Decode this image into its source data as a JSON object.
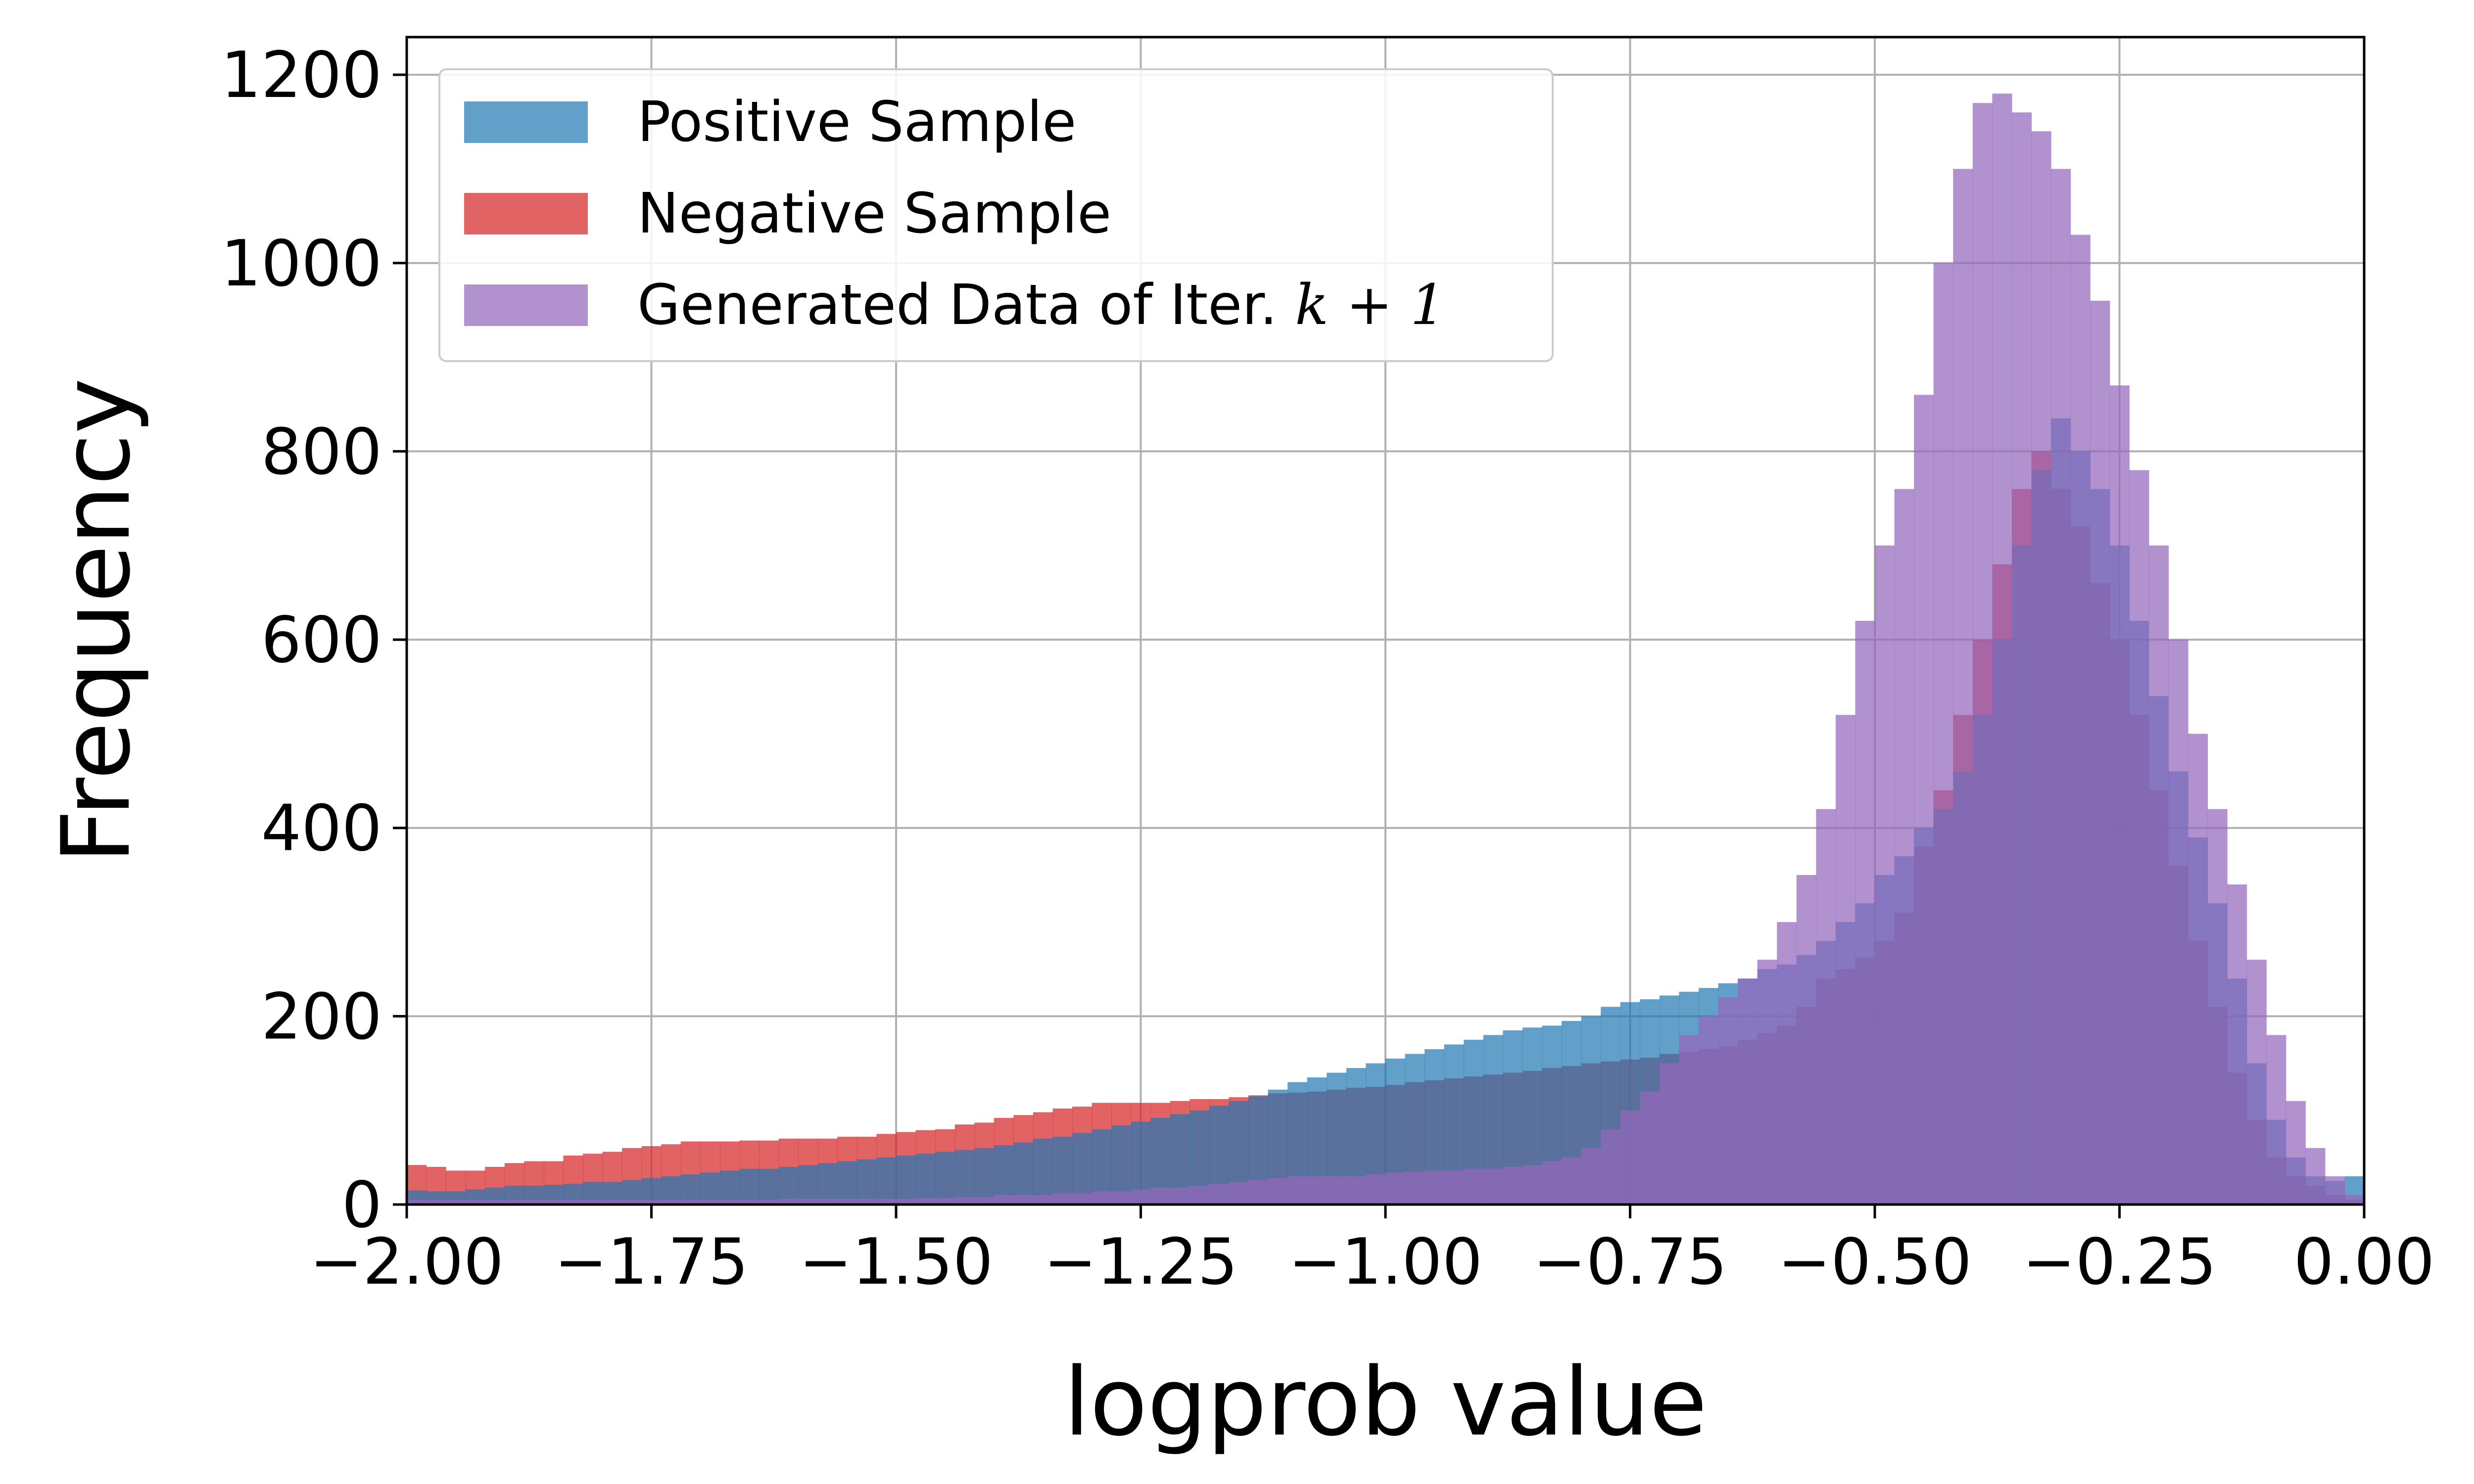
{
  "chart_data": {
    "type": "histogram",
    "title": "",
    "xlabel": "logprob value",
    "ylabel": "Frequency",
    "xlim": [
      -2.0,
      0.0
    ],
    "ylim": [
      0,
      1240
    ],
    "bin_width": 0.02,
    "grid": true,
    "legend_position": "top-left",
    "x_ticks": [
      -2.0,
      -1.75,
      -1.5,
      -1.25,
      -1.0,
      -0.75,
      -0.5,
      -0.25,
      0.0
    ],
    "x_tick_labels": [
      "−2.00",
      "−1.75",
      "−1.50",
      "−1.25",
      "−1.00",
      "−0.75",
      "−0.50",
      "−0.25",
      "0.00"
    ],
    "y_ticks": [
      0,
      200,
      400,
      600,
      800,
      1000,
      1200
    ],
    "y_tick_labels": [
      "0",
      "200",
      "400",
      "600",
      "800",
      "1000",
      "1200"
    ],
    "series": [
      {
        "name": "Negative Sample",
        "legend_label": "Negative Sample",
        "color": "#d62728",
        "opacity": 0.72,
        "values": [
          42,
          40,
          36,
          36,
          40,
          44,
          46,
          46,
          52,
          54,
          56,
          60,
          62,
          64,
          67,
          67,
          67,
          68,
          68,
          70,
          70,
          70,
          72,
          72,
          75,
          77,
          79,
          80,
          85,
          87,
          92,
          95,
          98,
          102,
          104,
          108,
          108,
          108,
          108,
          110,
          112,
          112,
          114,
          116,
          118,
          119,
          120,
          122,
          124,
          125,
          127,
          130,
          132,
          134,
          136,
          138,
          140,
          142,
          145,
          147,
          150,
          152,
          154,
          156,
          160,
          162,
          165,
          168,
          175,
          182,
          190,
          210,
          240,
          250,
          262,
          280,
          310,
          380,
          440,
          520,
          600,
          680,
          760,
          800,
          760,
          720,
          660,
          600,
          520,
          440,
          360,
          280,
          210,
          140,
          90,
          50,
          30,
          20,
          10,
          5
        ]
      },
      {
        "name": "Positive Sample",
        "legend_label": "Positive Sample",
        "color": "#1f77b4",
        "opacity": 0.7,
        "values": [
          15,
          14,
          14,
          16,
          18,
          20,
          20,
          21,
          22,
          24,
          24,
          26,
          28,
          30,
          32,
          34,
          36,
          38,
          38,
          40,
          42,
          44,
          46,
          48,
          50,
          52,
          54,
          56,
          58,
          60,
          63,
          66,
          70,
          72,
          76,
          80,
          84,
          88,
          92,
          96,
          100,
          105,
          110,
          115,
          122,
          130,
          135,
          140,
          145,
          150,
          155,
          160,
          165,
          170,
          175,
          180,
          185,
          188,
          190,
          195,
          200,
          210,
          215,
          218,
          222,
          226,
          230,
          235,
          240,
          250,
          255,
          265,
          280,
          300,
          320,
          350,
          370,
          400,
          420,
          460,
          520,
          600,
          700,
          780,
          835,
          800,
          760,
          700,
          620,
          540,
          460,
          390,
          320,
          240,
          150,
          90,
          50,
          30,
          25,
          30
        ]
      },
      {
        "name": "Generated Data of Iter. k+1",
        "legend_label": "Generated Data of Iter. ",
        "legend_math": "k + 1",
        "color": "#9467bd",
        "opacity": 0.72,
        "values": [
          5,
          5,
          5,
          5,
          5,
          5,
          5,
          5,
          5,
          5,
          5,
          5,
          5,
          5,
          5,
          5,
          5,
          5,
          5,
          6,
          6,
          6,
          6,
          6,
          6,
          6,
          7,
          7,
          8,
          8,
          10,
          10,
          10,
          12,
          12,
          14,
          14,
          16,
          18,
          18,
          20,
          22,
          24,
          26,
          28,
          30,
          30,
          30,
          30,
          32,
          34,
          35,
          36,
          36,
          38,
          38,
          40,
          42,
          46,
          50,
          60,
          80,
          100,
          120,
          150,
          180,
          200,
          220,
          240,
          260,
          300,
          350,
          420,
          520,
          620,
          700,
          760,
          860,
          1000,
          1100,
          1170,
          1180,
          1160,
          1140,
          1100,
          1030,
          960,
          870,
          780,
          700,
          600,
          500,
          420,
          340,
          260,
          180,
          110,
          60,
          30,
          10
        ]
      }
    ]
  }
}
